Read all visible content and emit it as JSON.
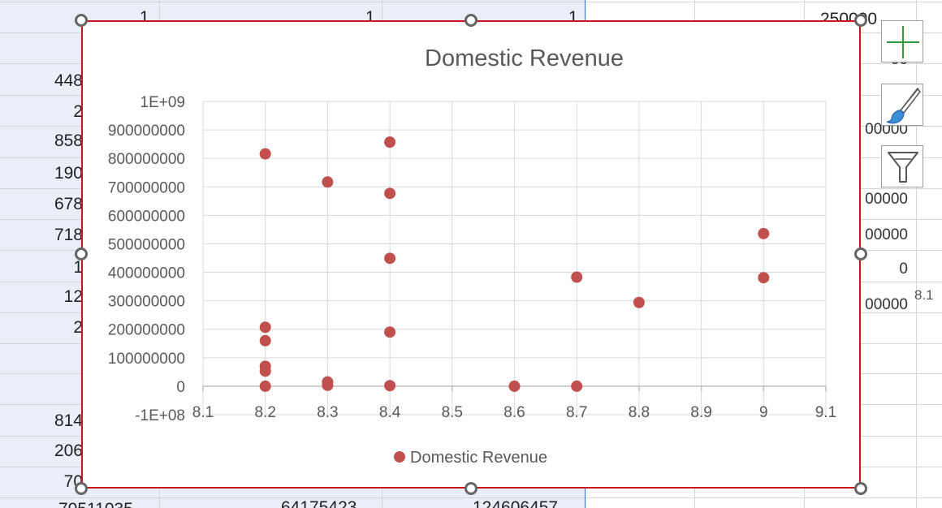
{
  "spreadsheet": {
    "col_a_cells": [
      "448",
      "2",
      "858",
      "190",
      "678",
      "718",
      "1",
      "12",
      "2",
      "814",
      "206",
      "70",
      "70511035"
    ],
    "col_a_header": "1",
    "col_b_header": "1",
    "col_b_bottom": "64175423",
    "col_c_header": "1",
    "col_c_bottom": "124606457",
    "col_e_cells": [
      "00",
      "00",
      "00000",
      "00",
      "00000",
      "00000",
      "0",
      "00000"
    ],
    "col_e_header": "250000",
    "col_f_cell": "8.1"
  },
  "chart_data": {
    "type": "scatter",
    "title": "Domestic Revenue",
    "xlim": [
      8.1,
      9.1
    ],
    "ylim": [
      -100000000,
      1000000000
    ],
    "x_ticks": [
      "8.1",
      "8.2",
      "8.3",
      "8.4",
      "8.5",
      "8.6",
      "8.7",
      "8.8",
      "8.9",
      "9",
      "9.1"
    ],
    "y_ticks": [
      "1E+09",
      "900000000",
      "800000000",
      "700000000",
      "600000000",
      "500000000",
      "400000000",
      "300000000",
      "200000000",
      "100000000",
      "0",
      "-1E+08"
    ],
    "grid": true,
    "legend_position": "bottom",
    "series": [
      {
        "name": "Domestic Revenue",
        "color": "#c0504d",
        "points": [
          [
            8.2,
            816000000
          ],
          [
            8.2,
            207000000
          ],
          [
            8.2,
            160000000
          ],
          [
            8.2,
            70000000
          ],
          [
            8.2,
            53000000
          ],
          [
            8.2,
            0
          ],
          [
            8.3,
            717000000
          ],
          [
            8.3,
            15000000
          ],
          [
            8.3,
            3000000
          ],
          [
            8.4,
            857000000
          ],
          [
            8.4,
            677000000
          ],
          [
            8.4,
            449000000
          ],
          [
            8.4,
            190000000
          ],
          [
            8.4,
            2000000
          ],
          [
            8.6,
            0
          ],
          [
            8.7,
            383000000
          ],
          [
            8.7,
            0
          ],
          [
            8.8,
            294000000
          ],
          [
            9.0,
            536000000
          ],
          [
            9.0,
            381000000
          ]
        ]
      }
    ]
  },
  "tools": {
    "elements_icon": "plus-icon",
    "styles_icon": "paintbrush-icon",
    "filter_icon": "funnel-icon"
  }
}
